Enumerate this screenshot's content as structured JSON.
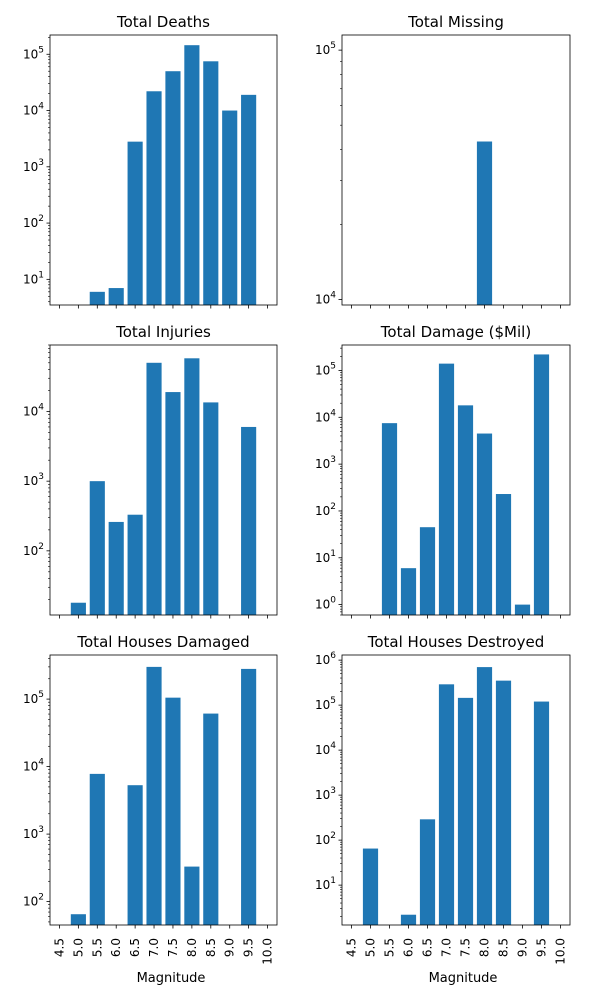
{
  "figure": {
    "xlabel": "Magnitude",
    "tick_labels": [
      "4.5",
      "5.0",
      "5.5",
      "6.0",
      "6.5",
      "7.0",
      "7.5",
      "8.0",
      "8.5",
      "9.0",
      "9.5",
      "10.0"
    ],
    "bar_color": "#1f77b4"
  },
  "chart_data": [
    {
      "type": "bar",
      "title": "Total Deaths",
      "yscale": "log",
      "ylim": [
        3.5,
        220000
      ],
      "ytick_values": [
        10,
        100,
        1000,
        10000,
        100000
      ],
      "categories": [
        4.5,
        5.0,
        5.5,
        6.0,
        6.5,
        7.0,
        7.5,
        8.0,
        8.5,
        9.0,
        9.5,
        10.0
      ],
      "values": [
        null,
        null,
        6,
        7,
        2800,
        22000,
        50000,
        145000,
        75000,
        10000,
        19000,
        null
      ]
    },
    {
      "type": "bar",
      "title": "Total Missing",
      "yscale": "log",
      "ylim": [
        9500,
        115000
      ],
      "ytick_values": [
        10000,
        100000
      ],
      "categories": [
        4.5,
        5.0,
        5.5,
        6.0,
        6.5,
        7.0,
        7.5,
        8.0,
        8.5,
        9.0,
        9.5,
        10.0
      ],
      "values": [
        null,
        null,
        null,
        null,
        null,
        null,
        null,
        43000,
        null,
        null,
        null,
        null
      ]
    },
    {
      "type": "bar",
      "title": "Total Injuries",
      "yscale": "log",
      "ylim": [
        12,
        90000
      ],
      "ytick_values": [
        100,
        1000,
        10000
      ],
      "categories": [
        4.5,
        5.0,
        5.5,
        6.0,
        6.5,
        7.0,
        7.5,
        8.0,
        8.5,
        9.0,
        9.5,
        10.0
      ],
      "values": [
        null,
        18,
        1000,
        260,
        330,
        50000,
        19000,
        58000,
        13500,
        null,
        6000,
        null
      ]
    },
    {
      "type": "bar",
      "title": "Total Damage ($Mil)",
      "yscale": "log",
      "ylim": [
        0.6,
        350000
      ],
      "ytick_values": [
        1,
        10,
        100,
        1000,
        10000,
        100000
      ],
      "categories": [
        4.5,
        5.0,
        5.5,
        6.0,
        6.5,
        7.0,
        7.5,
        8.0,
        8.5,
        9.0,
        9.5,
        10.0
      ],
      "values": [
        null,
        null,
        7500,
        6,
        45,
        140000,
        18000,
        4500,
        230,
        1,
        220000,
        null
      ]
    },
    {
      "type": "bar",
      "title": "Total Houses Damaged",
      "yscale": "log",
      "ylim": [
        45,
        450000
      ],
      "ytick_values": [
        100,
        1000,
        10000,
        100000
      ],
      "categories": [
        4.5,
        5.0,
        5.5,
        6.0,
        6.5,
        7.0,
        7.5,
        8.0,
        8.5,
        9.0,
        9.5,
        10.0
      ],
      "values": [
        null,
        65,
        7800,
        null,
        5300,
        300000,
        105000,
        330,
        61000,
        null,
        280000,
        null
      ]
    },
    {
      "type": "bar",
      "title": "Total Houses Destroyed",
      "yscale": "log",
      "ylim": [
        1.3,
        1300000
      ],
      "ytick_values": [
        10,
        100,
        1000,
        10000,
        100000,
        1000000
      ],
      "categories": [
        4.5,
        5.0,
        5.5,
        6.0,
        6.5,
        7.0,
        7.5,
        8.0,
        8.5,
        9.0,
        9.5,
        10.0
      ],
      "values": [
        null,
        65,
        null,
        2.2,
        290,
        290000,
        145000,
        700000,
        350000,
        null,
        120000,
        null
      ]
    }
  ]
}
